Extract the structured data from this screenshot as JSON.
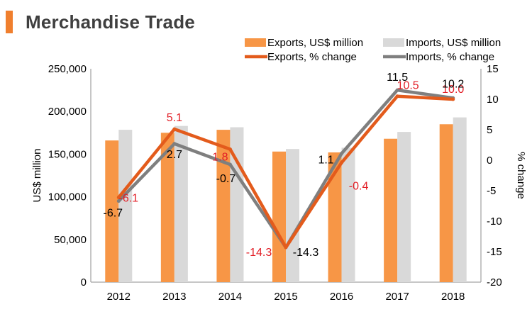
{
  "page": {
    "title": "Merchandise Trade",
    "accent_color": "#F07F2E"
  },
  "chart_data": {
    "type": "bar",
    "categories": [
      "2012",
      "2013",
      "2014",
      "2015",
      "2016",
      "2017",
      "2018"
    ],
    "series": [
      {
        "name": "Exports, US$ million",
        "type": "bar",
        "axis": "left",
        "color": "#F79646",
        "values": [
          166000,
          175000,
          178500,
          153000,
          152000,
          168000,
          185000
        ]
      },
      {
        "name": "Imports, US$ million",
        "type": "bar",
        "axis": "left",
        "color": "#D9D9D9",
        "values": [
          178500,
          183000,
          181500,
          156000,
          157500,
          176000,
          193000
        ]
      },
      {
        "name": "Exports, % change",
        "type": "line",
        "axis": "right",
        "color": "#E35B1C",
        "label_color": "#E21E26",
        "values": [
          -6.1,
          5.1,
          1.8,
          -14.3,
          -0.4,
          10.5,
          10.0
        ],
        "labels": [
          "-6.1",
          "5.1",
          "1.8",
          "-14.3",
          "-0.4",
          "10.5",
          "10.0"
        ]
      },
      {
        "name": "Imports, % change",
        "type": "line",
        "axis": "right",
        "color": "#7F7F7F",
        "label_color": "#000000",
        "values": [
          -6.7,
          2.7,
          -0.7,
          -14.3,
          1.1,
          11.5,
          10.2
        ],
        "labels": [
          "-6.7",
          "2.7",
          "-0.7",
          "-14.3",
          "1.1",
          "11.5",
          "10.2"
        ]
      }
    ],
    "y_left": {
      "label": "US$ million",
      "min": 0,
      "max": 250000,
      "ticks": [
        "0",
        "50,000",
        "100,000",
        "150,000",
        "200,000",
        "250,000"
      ]
    },
    "y_right": {
      "label": "% change",
      "min": -20,
      "max": 15,
      "ticks": [
        "-20",
        "-15",
        "-10",
        "-5",
        "0",
        "5",
        "10",
        "15"
      ]
    },
    "legend": {
      "position": "top-right"
    },
    "grid": false
  }
}
